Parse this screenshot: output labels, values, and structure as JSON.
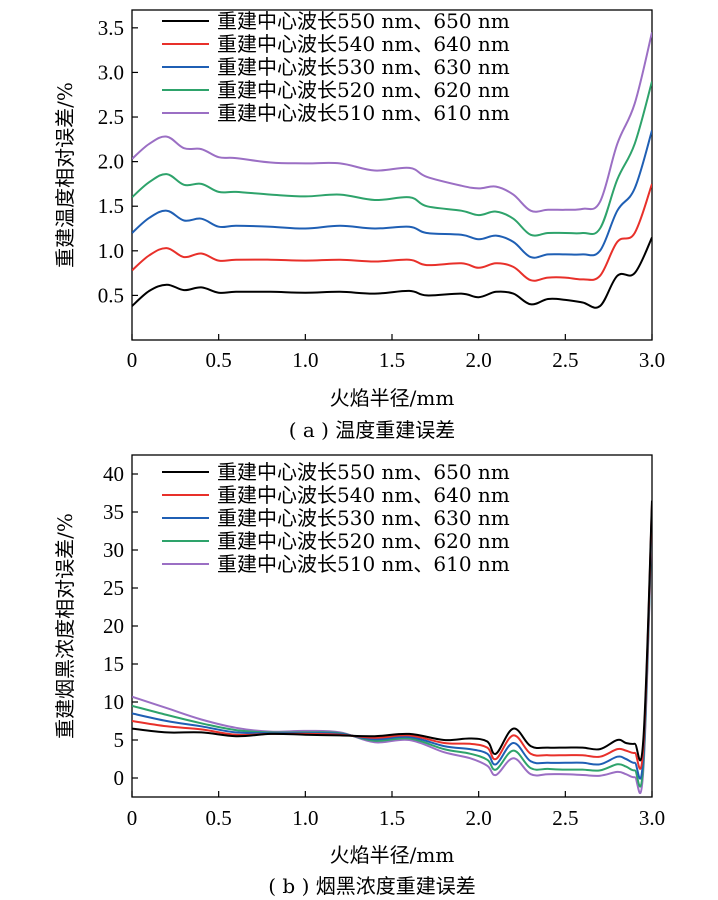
{
  "chart_data": [
    {
      "type": "line",
      "caption": "( a ) 温度重建误差",
      "xlabel": "火焰半径/mm",
      "ylabel": "重建温度相对误差/%",
      "xlim": [
        0,
        3.0
      ],
      "ylim": [
        0,
        3.7
      ],
      "xticks": [
        "0",
        "0.5",
        "1.0",
        "1.5",
        "2.0",
        "2.5",
        "3.0"
      ],
      "yticks": [
        "0.5",
        "1.0",
        "1.5",
        "2.0",
        "2.5",
        "3.0",
        "3.5"
      ],
      "legend_position": "top-left",
      "series": [
        {
          "name": "重建中心波长550 nm、650 nm",
          "color": "#000000",
          "x": [
            0,
            0.1,
            0.2,
            0.3,
            0.4,
            0.5,
            0.6,
            0.8,
            1.0,
            1.2,
            1.4,
            1.6,
            1.7,
            1.9,
            2.0,
            2.1,
            2.2,
            2.3,
            2.4,
            2.5,
            2.6,
            2.7,
            2.8,
            2.9,
            3.0
          ],
          "y": [
            0.38,
            0.55,
            0.62,
            0.56,
            0.59,
            0.53,
            0.54,
            0.54,
            0.53,
            0.54,
            0.52,
            0.55,
            0.5,
            0.52,
            0.48,
            0.54,
            0.52,
            0.4,
            0.46,
            0.45,
            0.42,
            0.38,
            0.72,
            0.75,
            1.15
          ]
        },
        {
          "name": "重建中心波长540 nm、640 nm",
          "color": "#e8302a",
          "x": [
            0,
            0.1,
            0.2,
            0.3,
            0.4,
            0.5,
            0.6,
            0.8,
            1.0,
            1.2,
            1.4,
            1.6,
            1.7,
            1.9,
            2.0,
            2.1,
            2.2,
            2.3,
            2.4,
            2.5,
            2.6,
            2.7,
            2.8,
            2.9,
            3.0
          ],
          "y": [
            0.78,
            0.95,
            1.03,
            0.93,
            0.97,
            0.89,
            0.9,
            0.9,
            0.89,
            0.9,
            0.88,
            0.9,
            0.84,
            0.86,
            0.81,
            0.86,
            0.82,
            0.67,
            0.7,
            0.7,
            0.68,
            0.72,
            1.1,
            1.2,
            1.75
          ]
        },
        {
          "name": "重建中心波长530 nm、630 nm",
          "color": "#1f5fb4",
          "x": [
            0,
            0.1,
            0.2,
            0.3,
            0.4,
            0.5,
            0.6,
            0.8,
            1.0,
            1.2,
            1.4,
            1.6,
            1.7,
            1.9,
            2.0,
            2.1,
            2.2,
            2.3,
            2.4,
            2.5,
            2.6,
            2.7,
            2.8,
            2.9,
            3.0
          ],
          "y": [
            1.2,
            1.37,
            1.45,
            1.34,
            1.36,
            1.27,
            1.28,
            1.27,
            1.25,
            1.28,
            1.25,
            1.27,
            1.2,
            1.18,
            1.13,
            1.17,
            1.1,
            0.93,
            0.96,
            0.96,
            0.96,
            1.0,
            1.45,
            1.7,
            2.35
          ]
        },
        {
          "name": "重建中心波长520 nm、620 nm",
          "color": "#2ea36b",
          "x": [
            0,
            0.1,
            0.2,
            0.3,
            0.4,
            0.5,
            0.6,
            0.8,
            1.0,
            1.2,
            1.4,
            1.6,
            1.7,
            1.9,
            2.0,
            2.1,
            2.2,
            2.3,
            2.4,
            2.5,
            2.6,
            2.7,
            2.8,
            2.9,
            3.0
          ],
          "y": [
            1.6,
            1.77,
            1.86,
            1.74,
            1.75,
            1.66,
            1.66,
            1.63,
            1.61,
            1.63,
            1.57,
            1.6,
            1.5,
            1.45,
            1.4,
            1.44,
            1.36,
            1.18,
            1.2,
            1.2,
            1.2,
            1.25,
            1.8,
            2.2,
            2.9
          ]
        },
        {
          "name": "重建中心波长510 nm、610 nm",
          "color": "#9b6fc4",
          "x": [
            0,
            0.1,
            0.2,
            0.3,
            0.4,
            0.5,
            0.6,
            0.8,
            1.0,
            1.2,
            1.4,
            1.6,
            1.7,
            1.9,
            2.0,
            2.1,
            2.2,
            2.3,
            2.4,
            2.5,
            2.6,
            2.7,
            2.8,
            2.9,
            3.0
          ],
          "y": [
            2.03,
            2.2,
            2.28,
            2.15,
            2.14,
            2.05,
            2.04,
            1.99,
            1.98,
            1.98,
            1.9,
            1.93,
            1.83,
            1.73,
            1.7,
            1.72,
            1.63,
            1.45,
            1.46,
            1.46,
            1.47,
            1.55,
            2.2,
            2.65,
            3.45
          ]
        }
      ]
    },
    {
      "type": "line",
      "caption": "( b ) 烟黑浓度重建误差",
      "xlabel": "火焰半径/mm",
      "ylabel": "重建烟黑浓度相对误差/%",
      "xlim": [
        0,
        3.0
      ],
      "ylim": [
        -2.5,
        42.5
      ],
      "xticks": [
        "0",
        "0.5",
        "1.0",
        "1.5",
        "2.0",
        "2.5",
        "3.0"
      ],
      "yticks": [
        "0",
        "5",
        "10",
        "15",
        "20",
        "25",
        "30",
        "35",
        "40"
      ],
      "legend_position": "top-left",
      "series": [
        {
          "name": "重建中心波长550 nm、650 nm",
          "color": "#000000",
          "x": [
            0,
            0.2,
            0.4,
            0.6,
            0.8,
            1.0,
            1.2,
            1.4,
            1.6,
            1.8,
            1.95,
            2.05,
            2.1,
            2.2,
            2.3,
            2.4,
            2.5,
            2.6,
            2.7,
            2.8,
            2.85,
            2.9,
            2.95,
            3.0
          ],
          "y": [
            6.5,
            6.0,
            6.0,
            5.5,
            5.8,
            5.7,
            5.6,
            5.5,
            5.8,
            5.0,
            5.2,
            4.8,
            3.2,
            6.5,
            4.2,
            4.0,
            4.0,
            4.0,
            3.8,
            5.0,
            4.6,
            4.5,
            5.0,
            36.5
          ]
        },
        {
          "name": "重建中心波长540 nm、640 nm",
          "color": "#e8302a",
          "x": [
            0,
            0.2,
            0.4,
            0.6,
            0.8,
            1.0,
            1.2,
            1.4,
            1.6,
            1.8,
            1.95,
            2.05,
            2.1,
            2.2,
            2.3,
            2.4,
            2.5,
            2.6,
            2.7,
            2.8,
            2.85,
            2.9,
            2.95,
            3.0
          ],
          "y": [
            7.5,
            6.8,
            6.4,
            5.7,
            5.8,
            5.8,
            5.7,
            5.3,
            5.6,
            4.6,
            4.5,
            4.0,
            2.5,
            5.6,
            3.2,
            3.0,
            3.0,
            3.0,
            2.8,
            3.8,
            3.6,
            3.3,
            4.0,
            36.0
          ]
        },
        {
          "name": "重建中心波长530 nm、630 nm",
          "color": "#1f5fb4",
          "x": [
            0,
            0.2,
            0.4,
            0.6,
            0.8,
            1.0,
            1.2,
            1.4,
            1.6,
            1.8,
            1.95,
            2.05,
            2.1,
            2.2,
            2.3,
            2.4,
            2.5,
            2.6,
            2.7,
            2.8,
            2.85,
            2.9,
            2.95,
            3.0
          ],
          "y": [
            8.5,
            7.5,
            6.8,
            6.0,
            5.9,
            5.9,
            5.8,
            5.1,
            5.4,
            4.2,
            3.8,
            3.2,
            1.8,
            4.6,
            2.2,
            2.0,
            2.0,
            2.0,
            1.8,
            2.8,
            2.5,
            2.0,
            2.8,
            35.5
          ]
        },
        {
          "name": "重建中心波长520 nm、620 nm",
          "color": "#2ea36b",
          "x": [
            0,
            0.2,
            0.4,
            0.6,
            0.8,
            1.0,
            1.2,
            1.4,
            1.6,
            1.8,
            1.95,
            2.05,
            2.1,
            2.2,
            2.3,
            2.4,
            2.5,
            2.6,
            2.7,
            2.8,
            2.85,
            2.9,
            2.95,
            3.0
          ],
          "y": [
            9.5,
            8.3,
            7.2,
            6.3,
            6.0,
            6.0,
            5.9,
            4.9,
            5.2,
            3.8,
            3.2,
            2.4,
            1.1,
            3.6,
            1.3,
            1.2,
            1.1,
            1.1,
            1.0,
            1.8,
            1.5,
            1.0,
            1.8,
            35.0
          ]
        },
        {
          "name": "重建中心波长510 nm、610 nm",
          "color": "#9b6fc4",
          "x": [
            0,
            0.2,
            0.4,
            0.6,
            0.8,
            1.0,
            1.2,
            1.4,
            1.6,
            1.8,
            1.95,
            2.05,
            2.1,
            2.2,
            2.3,
            2.4,
            2.5,
            2.6,
            2.7,
            2.8,
            2.85,
            2.9,
            2.95,
            3.0
          ],
          "y": [
            10.7,
            9.2,
            7.7,
            6.6,
            6.1,
            6.2,
            6.0,
            4.7,
            5.0,
            3.4,
            2.6,
            1.6,
            0.4,
            2.6,
            0.5,
            0.5,
            0.5,
            0.4,
            0.3,
            0.8,
            0.5,
            0.1,
            1.0,
            34.5
          ]
        }
      ]
    }
  ]
}
